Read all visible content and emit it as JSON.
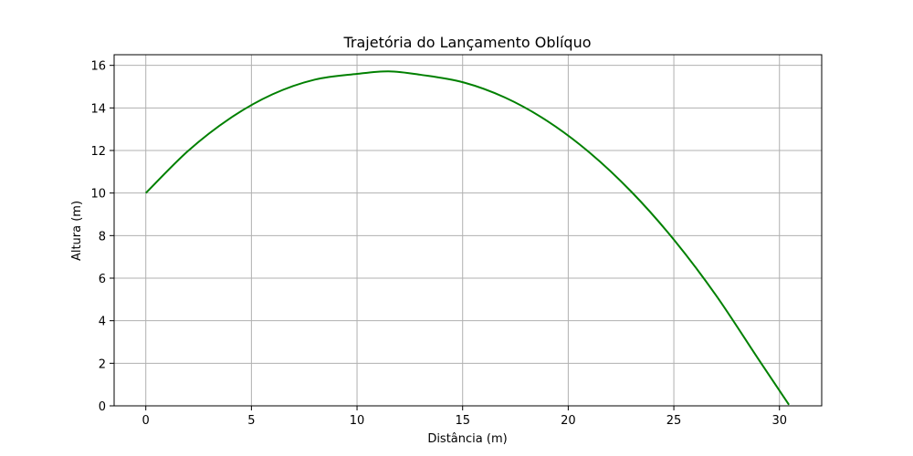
{
  "chart_data": {
    "type": "line",
    "title": "Trajetória do Lançamento Oblíquo",
    "xlabel": "Distância (m)",
    "ylabel": "Altura (m)",
    "xlim": [
      -1.5,
      32.0
    ],
    "ylim": [
      0,
      16.5
    ],
    "xticks": [
      0,
      5,
      10,
      15,
      20,
      25,
      30
    ],
    "yticks": [
      0,
      2,
      4,
      6,
      8,
      10,
      12,
      14,
      16
    ],
    "grid": true,
    "colors": {
      "line": "#008000",
      "grid": "#b0b0b0",
      "axes": "#000000"
    },
    "series": [
      {
        "x": [
          0,
          2,
          4,
          6,
          8,
          10,
          11.5,
          13,
          15,
          17,
          19,
          21,
          23,
          25,
          27,
          29,
          30.45
        ],
        "y": [
          10.0,
          11.98,
          13.52,
          14.64,
          15.33,
          15.6,
          15.72,
          15.56,
          15.21,
          14.49,
          13.39,
          11.91,
          10.05,
          7.81,
          5.19,
          2.2,
          0.05
        ]
      }
    ]
  }
}
